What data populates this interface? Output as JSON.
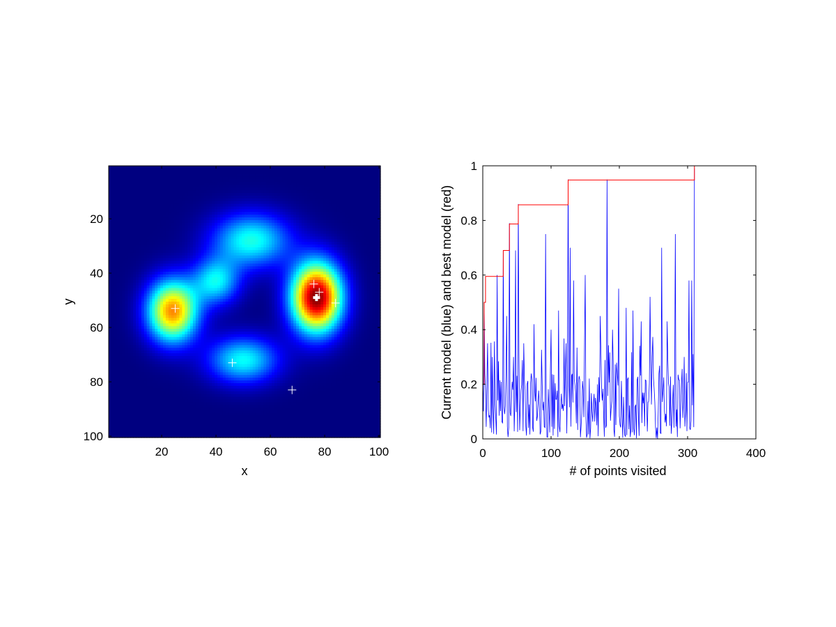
{
  "chart_data": [
    {
      "type": "heatmap",
      "xlabel": "x",
      "ylabel": "y",
      "xlim": [
        0.5,
        100.5
      ],
      "ylim": [
        0.5,
        100.5
      ],
      "y_reversed": true,
      "colormap": "jet",
      "xticks": [
        20,
        40,
        60,
        80,
        100
      ],
      "yticks": [
        20,
        40,
        60,
        80,
        100
      ],
      "grid": false,
      "bumps": [
        {
          "x": 77,
          "y": 49,
          "amplitude": 1.0,
          "sx": 6.5,
          "sy": 9
        },
        {
          "x": 24,
          "y": 54,
          "amplitude": 0.74,
          "sx": 6.5,
          "sy": 8
        },
        {
          "x": 53,
          "y": 28,
          "amplitude": 0.4,
          "sx": 10,
          "sy": 7
        },
        {
          "x": 40,
          "y": 43,
          "amplitude": 0.36,
          "sx": 6,
          "sy": 6
        },
        {
          "x": 50,
          "y": 72,
          "amplitude": 0.38,
          "sx": 9,
          "sy": 6
        }
      ],
      "markers": [
        {
          "x": 25,
          "y": 53,
          "bold": false
        },
        {
          "x": 46,
          "y": 73,
          "bold": false
        },
        {
          "x": 68,
          "y": 83,
          "bold": false
        },
        {
          "x": 76,
          "y": 44,
          "bold": false
        },
        {
          "x": 78,
          "y": 47,
          "bold": false
        },
        {
          "x": 84,
          "y": 51,
          "bold": false
        },
        {
          "x": 77,
          "y": 49,
          "bold": true
        }
      ],
      "marker_color": "#ffffff"
    },
    {
      "type": "line",
      "xlabel": "# of points visited",
      "ylabel": "Current model (blue) and best model (red)",
      "xlim": [
        0,
        400
      ],
      "ylim": [
        0,
        1
      ],
      "xticks": [
        0,
        100,
        200,
        300,
        400
      ],
      "yticks": [
        0,
        0.2,
        0.4,
        0.6,
        0.8,
        1
      ],
      "grid": false,
      "series": [
        {
          "color": "#0000ff",
          "samples": 310,
          "peaks": [
            {
              "x": 0,
              "y": 0.2
            },
            {
              "x": 2,
              "y": 0.5
            },
            {
              "x": 7,
              "y": 0.35
            },
            {
              "x": 14,
              "y": 0.3
            },
            {
              "x": 21,
              "y": 0.6
            },
            {
              "x": 30,
              "y": 0.69
            },
            {
              "x": 35,
              "y": 0.45
            },
            {
              "x": 39,
              "y": 0.79
            },
            {
              "x": 45,
              "y": 0.3
            },
            {
              "x": 48,
              "y": 0.69
            },
            {
              "x": 52,
              "y": 0.86
            },
            {
              "x": 60,
              "y": 0.35
            },
            {
              "x": 75,
              "y": 0.42
            },
            {
              "x": 92,
              "y": 0.75
            },
            {
              "x": 100,
              "y": 0.4
            },
            {
              "x": 111,
              "y": 0.47
            },
            {
              "x": 122,
              "y": 0.35
            },
            {
              "x": 125,
              "y": 0.95
            },
            {
              "x": 128,
              "y": 0.7
            },
            {
              "x": 133,
              "y": 0.58
            },
            {
              "x": 150,
              "y": 0.6
            },
            {
              "x": 160,
              "y": 0.1
            },
            {
              "x": 172,
              "y": 0.45
            },
            {
              "x": 182,
              "y": 0.95
            },
            {
              "x": 190,
              "y": 0.4
            },
            {
              "x": 199,
              "y": 0.55
            },
            {
              "x": 210,
              "y": 0.48
            },
            {
              "x": 220,
              "y": 0.47
            },
            {
              "x": 232,
              "y": 0.43
            },
            {
              "x": 245,
              "y": 0.52
            },
            {
              "x": 262,
              "y": 0.7
            },
            {
              "x": 270,
              "y": 0.43
            },
            {
              "x": 282,
              "y": 0.75
            },
            {
              "x": 295,
              "y": 0.3
            },
            {
              "x": 302,
              "y": 0.58
            },
            {
              "x": 306,
              "y": 0.58
            },
            {
              "x": 310,
              "y": 0.99
            }
          ]
        },
        {
          "color": "#ff0000",
          "steps": [
            {
              "x": 0,
              "y": 0.2
            },
            {
              "x": 2,
              "y": 0.5
            },
            {
              "x": 4,
              "y": 0.595
            },
            {
              "x": 30,
              "y": 0.69
            },
            {
              "x": 39,
              "y": 0.787
            },
            {
              "x": 52,
              "y": 0.857
            },
            {
              "x": 125,
              "y": 0.948
            },
            {
              "x": 310,
              "y": 1.0
            }
          ]
        }
      ]
    }
  ]
}
